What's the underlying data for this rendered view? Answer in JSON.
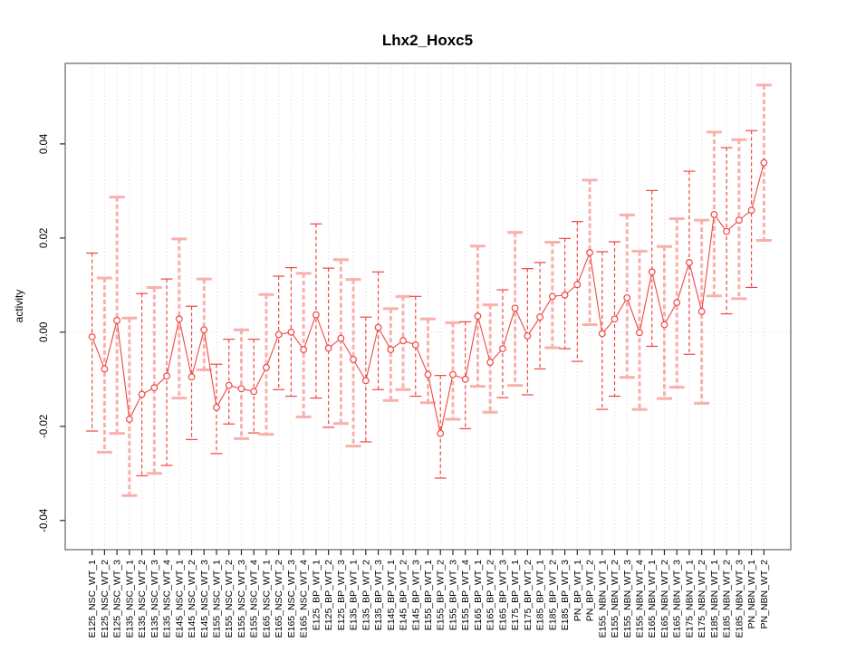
{
  "chart_data": {
    "type": "scatter-errorbar-line",
    "title": "Lhx2_Hoxc5",
    "xlabel": "",
    "ylabel": "activity",
    "ylim": [
      -0.0462,
      0.0571
    ],
    "yticks": [
      -0.04,
      -0.02,
      0,
      0.02,
      0.04
    ],
    "ytick_labels": [
      "-0.04",
      "-0.02",
      "0.00",
      "0.02",
      "0.04"
    ],
    "grid": {
      "vertical_dotted_per_category": true,
      "horizontal_dotted_at_zero": true
    },
    "legend": "none",
    "point_marker": "open-circle",
    "colors": {
      "point": "#f04743",
      "line": "#f04743",
      "bright_bar": "#f04743",
      "pale_bar": "#f9b0ac",
      "grid": "#d9d9d9",
      "box": "#6f6f6f",
      "tick": "#2b2b2b",
      "text": "#000000"
    },
    "categories": [
      "E125_NSC_WT_1",
      "E125_NSC_WT_2",
      "E125_NSC_WT_3",
      "E135_NSC_WT_1",
      "E135_NSC_WT_2",
      "E135_NSC_WT_3",
      "E135_NSC_WT_4",
      "E145_NSC_WT_1",
      "E145_NSC_WT_2",
      "E145_NSC_WT_3",
      "E155_NSC_WT_1",
      "E155_NSC_WT_2",
      "E155_NSC_WT_3",
      "E155_NSC_WT_4",
      "E165_NSC_WT_1",
      "E165_NSC_WT_2",
      "E165_NSC_WT_3",
      "E165_NSC_WT_4",
      "E125_BP_WT_1",
      "E125_BP_WT_2",
      "E125_BP_WT_3",
      "E135_BP_WT_1",
      "E135_BP_WT_2",
      "E135_BP_WT_3",
      "E145_BP_WT_1",
      "E145_BP_WT_2",
      "E145_BP_WT_3",
      "E155_BP_WT_1",
      "E155_BP_WT_2",
      "E155_BP_WT_3",
      "E155_BP_WT_4",
      "E165_BP_WT_1",
      "E165_BP_WT_2",
      "E165_BP_WT_3",
      "E175_BP_WT_1",
      "E175_BP_WT_2",
      "E185_BP_WT_1",
      "E185_BP_WT_2",
      "E185_BP_WT_3",
      "PN_BP_WT_1",
      "PN_BP_WT_2",
      "E155_NBN_WT_1",
      "E155_NBN_WT_2",
      "E155_NBN_WT_3",
      "E155_NBN_WT_4",
      "E165_NBN_WT_1",
      "E165_NBN_WT_2",
      "E165_NBN_WT_3",
      "E175_NBN_WT_1",
      "E175_NBN_WT_2",
      "E185_NBN_WT_1",
      "E185_NBN_WT_2",
      "E185_NBN_WT_3",
      "PN_NBN_WT_1",
      "PN_NBN_WT_2"
    ],
    "series": [
      {
        "name": "activity",
        "values": [
          -0.001,
          -0.0078,
          0.0025,
          -0.0185,
          -0.0132,
          -0.0118,
          -0.0093,
          0.0028,
          -0.0095,
          0.0005,
          -0.016,
          -0.0113,
          -0.012,
          -0.0126,
          -0.0075,
          -0.0005,
          0.0,
          -0.0037,
          0.0037,
          -0.0034,
          -0.0013,
          -0.0058,
          -0.0103,
          0.001,
          -0.0037,
          -0.0018,
          -0.0027,
          -0.009,
          -0.0215,
          -0.009,
          -0.01,
          0.0034,
          -0.0064,
          -0.0035,
          0.0051,
          -0.0008,
          0.0032,
          0.0076,
          0.0079,
          0.0101,
          0.0169,
          -0.0003,
          0.0028,
          0.0073,
          -0.0001,
          0.0128,
          0.0016,
          0.0063,
          0.0148,
          0.0044,
          0.025,
          0.0214,
          0.0238,
          0.0259,
          0.036
        ],
        "err_lo": [
          -0.021,
          -0.0255,
          -0.0215,
          -0.0347,
          -0.0305,
          -0.03,
          -0.0283,
          -0.014,
          -0.0228,
          -0.008,
          -0.0258,
          -0.0195,
          -0.0226,
          -0.0214,
          -0.0217,
          -0.0122,
          -0.0136,
          -0.018,
          -0.014,
          -0.0202,
          -0.0194,
          -0.0242,
          -0.0233,
          -0.0122,
          -0.0145,
          -0.0122,
          -0.0136,
          -0.015,
          -0.031,
          -0.0185,
          -0.0205,
          -0.0115,
          -0.017,
          -0.0139,
          -0.0113,
          -0.0133,
          -0.0078,
          -0.0033,
          -0.0035,
          -0.0062,
          0.0016,
          -0.0164,
          -0.0136,
          -0.0096,
          -0.0164,
          -0.003,
          -0.0141,
          -0.0117,
          -0.0047,
          -0.0151,
          0.0077,
          0.0039,
          0.0071,
          0.0095,
          0.0195
        ],
        "err_hi": [
          0.0168,
          0.0115,
          0.0287,
          0.003,
          0.0082,
          0.0095,
          0.0113,
          0.0198,
          0.0055,
          0.0113,
          -0.0068,
          -0.0015,
          0.0005,
          -0.0015,
          0.008,
          0.0119,
          0.0137,
          0.0125,
          0.023,
          0.0136,
          0.0154,
          0.0112,
          0.0032,
          0.0128,
          0.005,
          0.0076,
          0.0076,
          0.0028,
          -0.0092,
          0.002,
          0.0022,
          0.0183,
          0.0058,
          0.009,
          0.0212,
          0.0135,
          0.0148,
          0.0191,
          0.0199,
          0.0235,
          0.0323,
          0.0171,
          0.0192,
          0.0249,
          0.0172,
          0.0301,
          0.0182,
          0.0241,
          0.0342,
          0.0238,
          0.0425,
          0.0392,
          0.0409,
          0.0428,
          0.0525
        ],
        "bar_styles": [
          "bright",
          "pale",
          "pale",
          "pale",
          "bright",
          "pale",
          "bright",
          "pale",
          "bright",
          "pale",
          "bright",
          "bright",
          "pale",
          "bright",
          "pale",
          "bright",
          "bright",
          "pale",
          "bright",
          "bright",
          "pale",
          "pale",
          "bright",
          "bright",
          "pale",
          "pale",
          "bright",
          "pale",
          "bright",
          "pale",
          "bright",
          "pale",
          "pale",
          "bright",
          "pale",
          "bright",
          "bright",
          "pale",
          "bright",
          "bright",
          "pale",
          "bright",
          "bright",
          "pale",
          "pale",
          "bright",
          "pale",
          "pale",
          "bright",
          "pale",
          "pale",
          "bright",
          "pale",
          "bright",
          "pale"
        ]
      }
    ]
  }
}
